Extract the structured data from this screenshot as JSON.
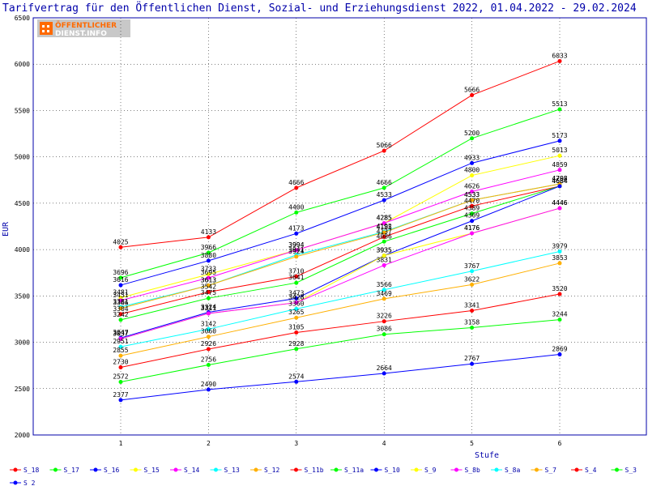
{
  "title": "Tarifvertrag für den Öffentlichen Dienst, Sozial- und Erziehungsdienst 2022, 01.04.2022 - 29.02.2024",
  "logo": {
    "line1": "ÖFFENTLICHER",
    "line2": "DIENST.INFO",
    "icon": "building-icon"
  },
  "colors": {
    "red": "#ff0000",
    "green": "#00ff00",
    "blue": "#0000ff",
    "yellow": "#ffff00",
    "magenta": "#ff00ff",
    "cyan": "#00ffff",
    "orange": "#ffb000",
    "axis": "#0000aa",
    "grid": "#000000"
  },
  "chart_data": {
    "type": "line",
    "xlabel": "Stufe",
    "ylabel": "EUR",
    "x": [
      1,
      2,
      3,
      4,
      5,
      6
    ],
    "ylim": [
      2000,
      6500
    ],
    "yticks": [
      2000,
      2500,
      3000,
      3500,
      4000,
      4500,
      5000,
      5500,
      6000,
      6500
    ],
    "grid": "horizontal dotted",
    "legend_position": "bottom",
    "series": [
      {
        "name": "S_18",
        "color": "#ff0000",
        "values": [
          4025,
          4133,
          4666,
          5066,
          5666,
          6033
        ]
      },
      {
        "name": "S_17",
        "color": "#00ff00",
        "values": [
          3696,
          3966,
          4400,
          4666,
          5200,
          5513
        ]
      },
      {
        "name": "S_16",
        "color": "#0000ff",
        "values": [
          3616,
          3880,
          4173,
          4533,
          4933,
          5173
        ]
      },
      {
        "name": "S_15",
        "color": "#ffff00",
        "values": [
          3481,
          3733,
          3994,
          4285,
          4800,
          5013
        ]
      },
      {
        "name": "S_14",
        "color": "#ff00ff",
        "values": [
          3451,
          3695,
          3994,
          4285,
          4626,
          4859
        ]
      },
      {
        "name": "S_13",
        "color": "#00ffff",
        "values": [
          3381,
          3613,
          3941,
          4192,
          4533,
          4708
        ]
      },
      {
        "name": "S_12",
        "color": "#ffb000",
        "values": [
          3366,
          3613,
          3924,
          4185,
          4533,
          4708
        ]
      },
      {
        "name": "S_11b",
        "color": "#ff0000",
        "values": [
          3304,
          3542,
          3710,
          4137,
          4470,
          4684
        ]
      },
      {
        "name": "S_11a",
        "color": "#00ff00",
        "values": [
          3242,
          3475,
          3641,
          4086,
          4389,
          4684
        ]
      },
      {
        "name": "S_10",
        "color": "#0000ff",
        "values": [
          3047,
          3324,
          3473,
          3935,
          4309,
          4684
        ]
      },
      {
        "name": "S_9",
        "color": "#ffff00",
        "values": [
          3037,
          3311,
          3428,
          3935,
          4176,
          4446
        ]
      },
      {
        "name": "S_8b",
        "color": "#ff00ff",
        "values": [
          3037,
          3311,
          3428,
          3831,
          4176,
          4446
        ]
      },
      {
        "name": "S_8a",
        "color": "#00ffff",
        "values": [
          2951,
          3142,
          3360,
          3566,
          3767,
          3979
        ]
      },
      {
        "name": "S_7",
        "color": "#ffb000",
        "values": [
          2855,
          3060,
          3265,
          3469,
          3622,
          3853
        ]
      },
      {
        "name": "S_4",
        "color": "#ff0000",
        "values": [
          2730,
          2926,
          3105,
          3226,
          3341,
          3520
        ]
      },
      {
        "name": "S_3",
        "color": "#00ff00",
        "values": [
          2572,
          2756,
          2928,
          3086,
          3158,
          3244
        ]
      },
      {
        "name": "S_2",
        "color": "#0000ff",
        "values": [
          2377,
          2490,
          2574,
          2664,
          2767,
          2869
        ]
      }
    ]
  }
}
